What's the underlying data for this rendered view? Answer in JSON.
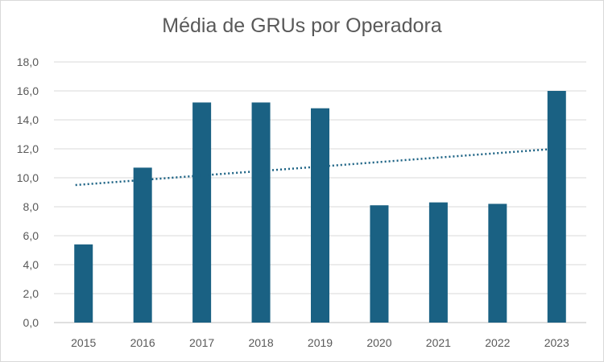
{
  "chart_data": {
    "type": "bar",
    "title": "Média de GRUs por Operadora",
    "categories": [
      "2015",
      "2016",
      "2017",
      "2018",
      "2019",
      "2020",
      "2021",
      "2022",
      "2023"
    ],
    "series": [
      {
        "values": [
          5.4,
          10.7,
          15.2,
          15.2,
          14.8,
          8.1,
          8.3,
          8.2,
          16.0
        ],
        "color": "#1a6183"
      }
    ],
    "trendline": {
      "type": "linear",
      "style": "dotted",
      "color": "#1a6183",
      "start": 9.5,
      "end": 12.0
    },
    "ylim": [
      0,
      18
    ],
    "yticks": [
      "0,0",
      "2,0",
      "4,0",
      "6,0",
      "8,0",
      "10,0",
      "12,0",
      "14,0",
      "16,0",
      "18,0"
    ],
    "xlabel": "",
    "ylabel": "",
    "grid": true,
    "legend": "none"
  }
}
